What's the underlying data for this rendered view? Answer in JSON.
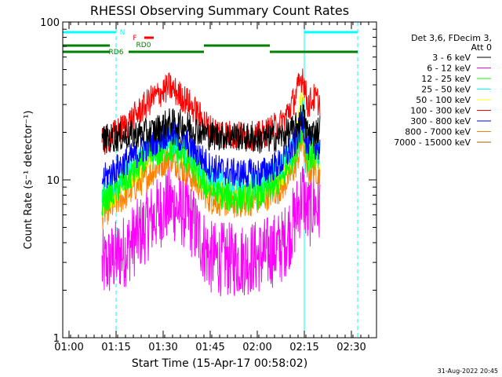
{
  "chart_data": {
    "type": "line",
    "title": "RHESSI Observing Summary Count Rates",
    "xlabel": "Start Time (15-Apr-17 00:58:02)",
    "ylabel": "Count Rate (s⁻¹ detector⁻¹)",
    "yscale": "log",
    "ylim": [
      1,
      100
    ],
    "xlim_minutes": [
      0,
      100
    ],
    "x_ticks": [
      {
        "label": "01:00",
        "minute": 2
      },
      {
        "label": "01:15",
        "minute": 17
      },
      {
        "label": "01:30",
        "minute": 32
      },
      {
        "label": "01:45",
        "minute": 47
      },
      {
        "label": "02:00",
        "minute": 62
      },
      {
        "label": "02:15",
        "minute": 77
      },
      {
        "label": "02:30",
        "minute": 92
      }
    ],
    "y_ticks": [
      {
        "label": "1",
        "value": 1
      },
      {
        "label": "10",
        "value": 10
      },
      {
        "label": "100",
        "value": 100
      }
    ],
    "legend_header": [
      "Det 3,6, FDecim 3,",
      "Att 0"
    ],
    "legend_placement": "right",
    "series": [
      {
        "name": "3 - 6 keV",
        "color": "#000000",
        "t": [
          12.5,
          20,
          28,
          34,
          40,
          47,
          55,
          63,
          70,
          74,
          76.5,
          78,
          80,
          82
        ],
        "values": [
          18,
          19,
          20,
          23,
          22,
          19,
          19,
          18,
          19,
          21,
          26,
          20,
          20,
          21
        ]
      },
      {
        "name": "6 - 12 keV",
        "color": "#ff00ff",
        "t": [
          12.5,
          20,
          28,
          34,
          40,
          44,
          47,
          55,
          63,
          70,
          74,
          76.5,
          78,
          80,
          82
        ],
        "values": [
          2.8,
          3.6,
          5.5,
          7.2,
          6,
          4.2,
          3.2,
          3.1,
          3.3,
          3.8,
          5.6,
          8.5,
          6,
          7,
          6.5
        ]
      },
      {
        "name": "12 - 25 keV",
        "color": "#00ff00",
        "t": [
          12.5,
          20,
          28,
          34,
          40,
          47,
          55,
          63,
          70,
          74,
          76.5,
          78,
          80,
          82
        ],
        "values": [
          7,
          10,
          14,
          16,
          13,
          8.5,
          7.5,
          8,
          10,
          15,
          22,
          14,
          14,
          13
        ]
      },
      {
        "name": "25 - 50 keV",
        "color": "#00ffff",
        "t": [
          12.5,
          20,
          28,
          34,
          40,
          47,
          55,
          63,
          70,
          74,
          76.5,
          78,
          80,
          82
        ],
        "values": [
          8,
          11,
          16,
          18,
          15,
          10,
          9,
          9.5,
          12,
          17,
          28,
          16,
          16,
          15
        ]
      },
      {
        "name": "50 - 100 keV",
        "color": "#ffff00",
        "t": [
          12.5,
          20,
          28,
          34,
          40,
          47,
          55,
          63,
          70,
          74,
          76.5,
          78,
          80,
          82
        ],
        "values": [
          7,
          10,
          15,
          20,
          14,
          9,
          8.5,
          9,
          11,
          16,
          38,
          15,
          15,
          14
        ]
      },
      {
        "name": "100 - 300 keV",
        "color": "#ff0000",
        "t": [
          12.5,
          20,
          28,
          34,
          40,
          47,
          55,
          63,
          70,
          74,
          76.5,
          78,
          80,
          82
        ],
        "values": [
          17,
          22,
          32,
          39,
          31,
          21,
          19,
          19,
          23,
          33,
          47,
          30,
          33,
          31
        ]
      },
      {
        "name": "300 - 800 keV",
        "color": "#0000ff",
        "t": [
          12.5,
          20,
          28,
          34,
          40,
          47,
          55,
          63,
          70,
          74,
          76.5,
          78,
          80,
          82
        ],
        "values": [
          10,
          13,
          17,
          20,
          17,
          12,
          11,
          11,
          13,
          17,
          24,
          16,
          17,
          16
        ]
      },
      {
        "name": "800 - 7000 keV",
        "color": "#ff8000",
        "t": [
          12.5,
          20,
          28,
          34,
          40,
          47,
          55,
          63,
          70,
          74,
          76.5,
          78,
          80,
          82
        ],
        "values": [
          6,
          8,
          11,
          14,
          11,
          7.5,
          7,
          7.5,
          9,
          12,
          18,
          11,
          12,
          11
        ]
      },
      {
        "name": "7000 - 15000 keV",
        "color": "#a06000",
        "t": [],
        "values": []
      }
    ],
    "flags": [
      {
        "label": "N",
        "color": "#00ffff",
        "row": 0,
        "segments": [
          [
            0,
            17
          ],
          [
            77,
            94
          ]
        ]
      },
      {
        "label": "F",
        "color": "#ff0000",
        "row": 1,
        "segments": [
          [
            26,
            29
          ]
        ]
      },
      {
        "label": "RD0",
        "color": "#008000",
        "row": 2,
        "segments": [
          [
            0,
            15
          ],
          [
            45,
            66
          ]
        ]
      },
      {
        "label": "RD6",
        "color": "#008000",
        "row": 3,
        "segments": [
          [
            0,
            15
          ],
          [
            21,
            45
          ],
          [
            66,
            94
          ]
        ]
      }
    ],
    "vertical_lines": [
      {
        "minute": 0,
        "color": "#00ffff",
        "style": "solid"
      },
      {
        "minute": 17,
        "color": "#00ffff",
        "style": "dashed"
      },
      {
        "minute": 77,
        "color": "#00ffff",
        "style": "solid"
      },
      {
        "minute": 94,
        "color": "#00ffff",
        "style": "dashed"
      }
    ]
  },
  "footer_date": "31-Aug-2022 20:45"
}
